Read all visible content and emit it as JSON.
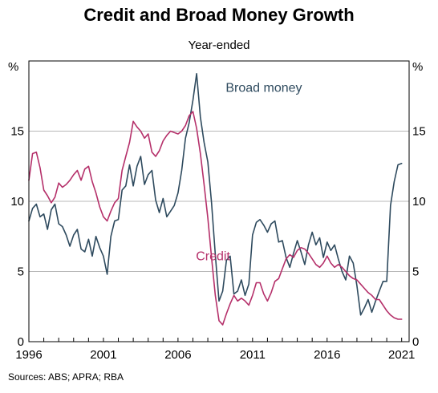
{
  "chart_data": {
    "type": "line",
    "title": "Credit and Broad Money Growth",
    "subtitle": "Year-ended",
    "source": "Sources: ABS; APRA; RBA",
    "y_unit_left": "%",
    "y_unit_right": "%",
    "xlim": [
      1996,
      2021.5
    ],
    "ylim": [
      0,
      20
    ],
    "yticks": [
      0,
      5,
      10,
      15
    ],
    "xticks": [
      1996,
      2001,
      2006,
      2011,
      2016,
      2021
    ],
    "xtick_labels": [
      "1996",
      "2001",
      "2006",
      "2011",
      "2016",
      "2021"
    ],
    "ytick_labels": [
      "0",
      "5",
      "10",
      "15"
    ],
    "grid": true,
    "series": [
      {
        "name": "Broad money",
        "color": "#2e4a5e",
        "x": [
          1996.0,
          1996.25,
          1996.5,
          1996.75,
          1997.0,
          1997.25,
          1997.5,
          1997.75,
          1998.0,
          1998.25,
          1998.5,
          1998.75,
          1999.0,
          1999.25,
          1999.5,
          1999.75,
          2000.0,
          2000.25,
          2000.5,
          2000.75,
          2001.0,
          2001.25,
          2001.5,
          2001.75,
          2002.0,
          2002.25,
          2002.5,
          2002.75,
          2003.0,
          2003.25,
          2003.5,
          2003.75,
          2004.0,
          2004.25,
          2004.5,
          2004.75,
          2005.0,
          2005.25,
          2005.5,
          2005.75,
          2006.0,
          2006.25,
          2006.5,
          2006.75,
          2007.0,
          2007.25,
          2007.5,
          2007.75,
          2008.0,
          2008.25,
          2008.5,
          2008.75,
          2009.0,
          2009.25,
          2009.5,
          2009.75,
          2010.0,
          2010.25,
          2010.5,
          2010.75,
          2011.0,
          2011.25,
          2011.5,
          2011.75,
          2012.0,
          2012.25,
          2012.5,
          2012.75,
          2013.0,
          2013.25,
          2013.5,
          2013.75,
          2014.0,
          2014.25,
          2014.5,
          2014.75,
          2015.0,
          2015.25,
          2015.5,
          2015.75,
          2016.0,
          2016.25,
          2016.5,
          2016.75,
          2017.0,
          2017.25,
          2017.5,
          2017.75,
          2018.0,
          2018.25,
          2018.5,
          2018.75,
          2019.0,
          2019.25,
          2019.5,
          2019.75,
          2020.0,
          2020.25,
          2020.5,
          2020.75,
          2021.0
        ],
        "values": [
          8.6,
          9.5,
          9.8,
          8.9,
          9.1,
          8.0,
          9.4,
          9.8,
          8.4,
          8.2,
          7.6,
          6.8,
          7.6,
          8.0,
          6.6,
          6.4,
          7.3,
          6.1,
          7.5,
          6.7,
          6.1,
          4.8,
          7.5,
          8.6,
          8.7,
          10.8,
          11.1,
          12.6,
          11.1,
          12.5,
          13.2,
          11.2,
          11.9,
          12.2,
          10.1,
          9.2,
          10.2,
          8.9,
          9.3,
          9.7,
          10.6,
          12.2,
          14.5,
          15.6,
          17.2,
          19.1,
          16.0,
          14.2,
          12.8,
          9.9,
          6.2,
          2.9,
          3.6,
          5.8,
          6.1,
          3.4,
          3.6,
          4.4,
          3.3,
          4.1,
          7.6,
          8.5,
          8.7,
          8.3,
          7.8,
          8.4,
          8.6,
          7.1,
          7.2,
          6.0,
          5.3,
          6.3,
          7.2,
          6.4,
          5.5,
          6.9,
          7.8,
          6.9,
          7.4,
          6.0,
          7.1,
          6.5,
          6.9,
          5.9,
          5.0,
          4.4,
          6.1,
          5.6,
          4.0,
          1.9,
          2.4,
          3.0,
          2.1,
          2.9,
          3.6,
          4.3,
          4.3,
          9.7,
          11.4,
          12.6,
          12.7
        ]
      },
      {
        "name": "Credit",
        "color": "#b5306a",
        "x": [
          1996.0,
          1996.25,
          1996.5,
          1996.75,
          1997.0,
          1997.25,
          1997.5,
          1997.75,
          1998.0,
          1998.25,
          1998.5,
          1998.75,
          1999.0,
          1999.25,
          1999.5,
          1999.75,
          2000.0,
          2000.25,
          2000.5,
          2000.75,
          2001.0,
          2001.25,
          2001.5,
          2001.75,
          2002.0,
          2002.25,
          2002.5,
          2002.75,
          2003.0,
          2003.25,
          2003.5,
          2003.75,
          2004.0,
          2004.25,
          2004.5,
          2004.75,
          2005.0,
          2005.25,
          2005.5,
          2005.75,
          2006.0,
          2006.25,
          2006.5,
          2006.75,
          2007.0,
          2007.25,
          2007.5,
          2007.75,
          2008.0,
          2008.25,
          2008.5,
          2008.75,
          2009.0,
          2009.25,
          2009.5,
          2009.75,
          2010.0,
          2010.25,
          2010.5,
          2010.75,
          2011.0,
          2011.25,
          2011.5,
          2011.75,
          2012.0,
          2012.25,
          2012.5,
          2012.75,
          2013.0,
          2013.25,
          2013.5,
          2013.75,
          2014.0,
          2014.25,
          2014.5,
          2014.75,
          2015.0,
          2015.25,
          2015.5,
          2015.75,
          2016.0,
          2016.25,
          2016.5,
          2016.75,
          2017.0,
          2017.25,
          2017.5,
          2017.75,
          2018.0,
          2018.25,
          2018.5,
          2018.75,
          2019.0,
          2019.25,
          2019.5,
          2019.75,
          2020.0,
          2020.25,
          2020.5,
          2020.75,
          2021.0
        ],
        "values": [
          11.5,
          13.4,
          13.5,
          12.4,
          10.8,
          10.4,
          9.9,
          10.3,
          11.3,
          11.0,
          11.2,
          11.5,
          11.9,
          12.2,
          11.5,
          12.3,
          12.5,
          11.4,
          10.6,
          9.6,
          8.9,
          8.6,
          9.3,
          9.9,
          10.2,
          12.2,
          13.2,
          14.2,
          15.7,
          15.3,
          15.0,
          14.5,
          14.8,
          13.5,
          13.2,
          13.6,
          14.3,
          14.7,
          15.0,
          14.9,
          14.8,
          15.0,
          15.4,
          16.1,
          16.4,
          15.2,
          13.4,
          11.2,
          8.8,
          6.0,
          3.3,
          1.5,
          1.2,
          2.0,
          2.7,
          3.3,
          2.9,
          3.1,
          2.9,
          2.6,
          3.3,
          4.2,
          4.2,
          3.4,
          2.9,
          3.5,
          4.3,
          4.5,
          5.2,
          5.9,
          6.2,
          6.0,
          6.5,
          6.7,
          6.6,
          6.3,
          5.9,
          5.5,
          5.3,
          5.6,
          6.1,
          5.6,
          5.3,
          5.5,
          5.3,
          5.0,
          4.7,
          4.5,
          4.4,
          4.1,
          3.8,
          3.5,
          3.3,
          3.0,
          3.0,
          2.6,
          2.2,
          1.9,
          1.7,
          1.6,
          1.6
        ]
      }
    ],
    "annotations": [
      {
        "text": "Broad money",
        "x": 2009.2,
        "y": 17.8
      },
      {
        "text": "Credit",
        "x": 2007.2,
        "y": 5.8
      }
    ]
  }
}
